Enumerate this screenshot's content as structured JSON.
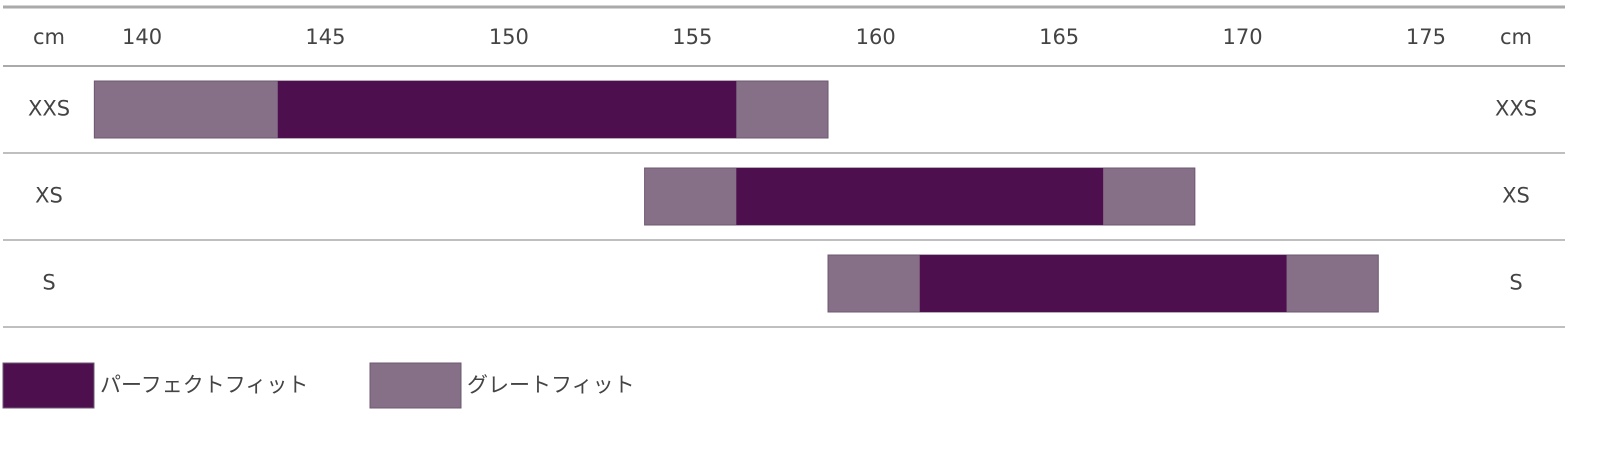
{
  "chart_data": {
    "type": "range-bar",
    "unit_label": "cm",
    "categories": [
      "XXS",
      "XS",
      "S"
    ],
    "series": [
      {
        "name": "グレートフィット",
        "color": "#867088",
        "low": [
          138.7,
          153.7,
          158.7
        ],
        "high": [
          158.7,
          168.7,
          173.7
        ]
      },
      {
        "name": "パーフェクトフィット",
        "color": "#4e0f4f",
        "low": [
          143.7,
          156.2,
          161.2
        ],
        "high": [
          156.2,
          166.2,
          171.2
        ]
      }
    ],
    "legend_order": [
      1,
      0
    ],
    "xlim": [
      138.5,
      176.5
    ],
    "xticks": [
      140,
      145,
      150,
      155,
      160,
      165,
      170,
      175
    ]
  }
}
